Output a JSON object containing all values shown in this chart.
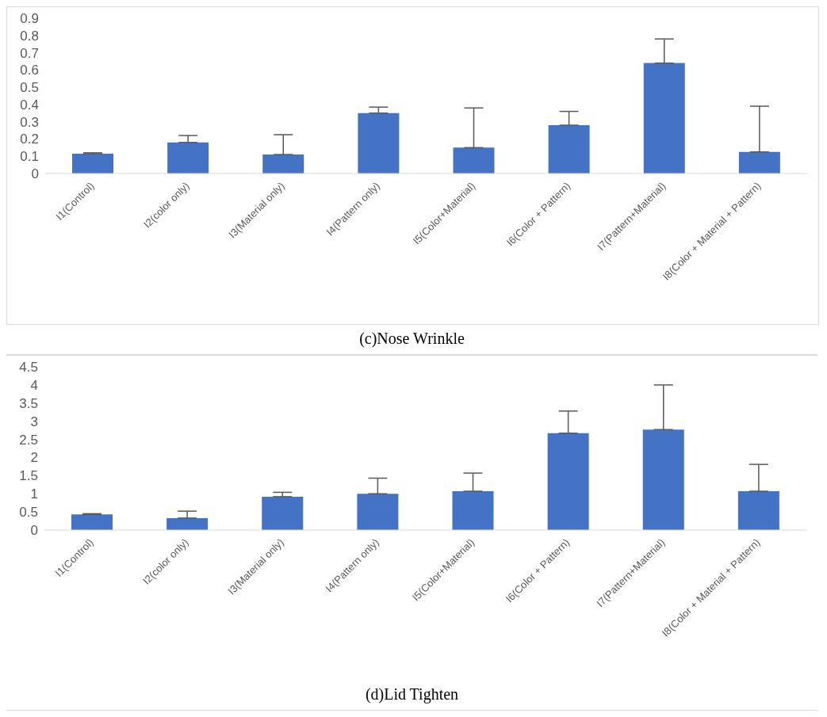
{
  "chart_data": [
    {
      "type": "bar",
      "title": "(c)Nose Wrinkle",
      "categories": [
        "I1(Control)",
        "I2(color only)",
        "I3(Material only)",
        "I4(Pattern only)",
        "I5(Color+Material)",
        "I6(Color + Pattern)",
        "I7(Pattern+Material)",
        "I8(Color + Material + Pattern)"
      ],
      "color": "#4472c4",
      "values": [
        0.115,
        0.18,
        0.11,
        0.35,
        0.15,
        0.28,
        0.64,
        0.125
      ],
      "errors": [
        [
          0.115,
          0.12
        ],
        [
          0.18,
          0.22
        ],
        [
          0.11,
          0.225
        ],
        [
          0.35,
          0.385
        ],
        [
          0.15,
          0.38
        ],
        [
          0.28,
          0.36
        ],
        [
          0.64,
          0.78
        ],
        [
          0.125,
          0.39
        ]
      ],
      "ylim": [
        0,
        0.9
      ],
      "yticks": [
        0,
        0.1,
        0.2,
        0.3,
        0.4,
        0.5,
        0.6,
        0.7,
        0.8,
        0.9
      ],
      "grid": false,
      "legend": false
    },
    {
      "type": "bar",
      "title": "(d)Lid Tighten",
      "categories": [
        "I1(Control)",
        "I2(color only)",
        "I3(Material only)",
        "I4(Pattern only)",
        "I5(Color+Material)",
        "I6(Color + Pattern)",
        "I7(Pattern+Material)",
        "I8(Color + Material + Pattern)"
      ],
      "color": "#4472c4",
      "values": [
        0.43,
        0.33,
        0.92,
        1.0,
        1.07,
        2.67,
        2.77,
        1.07
      ],
      "errors": [
        [
          0.43,
          0.45
        ],
        [
          0.33,
          0.52
        ],
        [
          0.92,
          1.04
        ],
        [
          1.0,
          1.43
        ],
        [
          1.07,
          1.57
        ],
        [
          2.67,
          3.28
        ],
        [
          2.77,
          4.0
        ],
        [
          1.07,
          1.81
        ]
      ],
      "ylim": [
        0,
        4.5
      ],
      "yticks": [
        0,
        0.5,
        1,
        1.5,
        2,
        2.5,
        3,
        3.5,
        4,
        4.5
      ],
      "grid": false,
      "legend": false
    }
  ]
}
